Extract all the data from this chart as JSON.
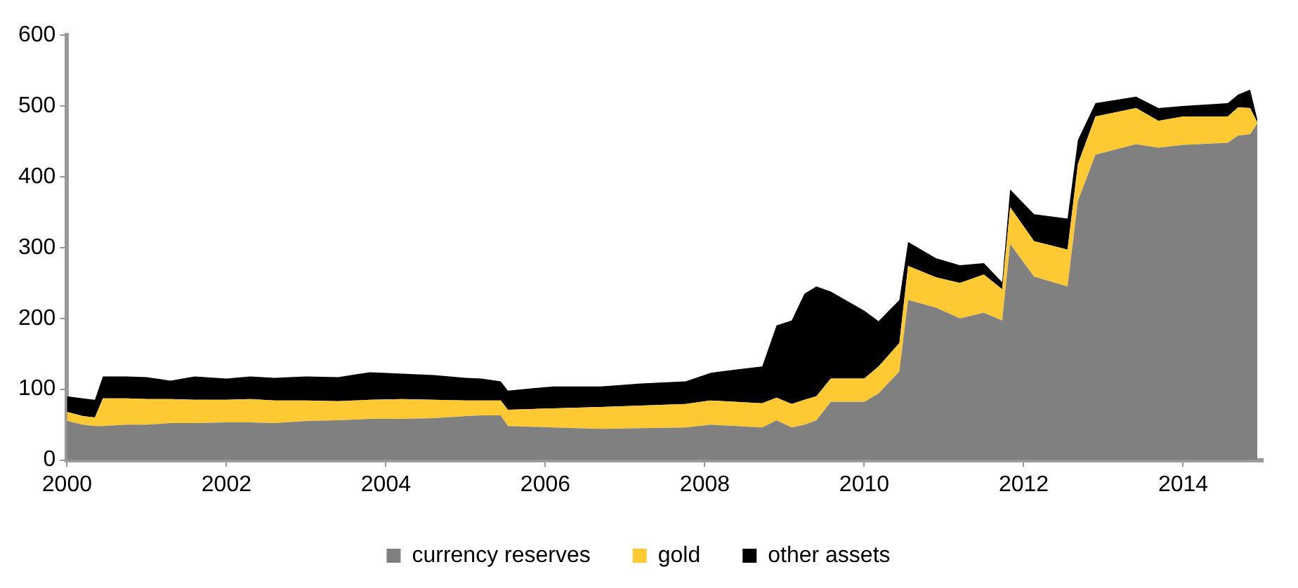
{
  "chart_data": {
    "type": "area",
    "stacked": true,
    "legend": "bottom",
    "grid": false,
    "marker": "none",
    "x": [
      2000.0,
      2000.2,
      2000.35,
      2000.45,
      2000.75,
      2001.0,
      2001.3,
      2001.6,
      2002.0,
      2002.3,
      2002.6,
      2003.0,
      2003.4,
      2003.8,
      2004.2,
      2004.6,
      2005.0,
      2005.2,
      2005.44,
      2005.53,
      2006.1,
      2006.7,
      2007.2,
      2007.76,
      2008.07,
      2008.4,
      2008.72,
      2008.9,
      2009.09,
      2009.25,
      2009.4,
      2009.58,
      2010.0,
      2010.18,
      2010.44,
      2010.55,
      2010.9,
      2011.2,
      2011.5,
      2011.73,
      2011.83,
      2012.13,
      2012.55,
      2012.68,
      2012.9,
      2013.41,
      2013.69,
      2014.0,
      2014.56,
      2014.69,
      2014.84,
      2014.93
    ],
    "series": [
      {
        "name": "currency reserves",
        "color": "#808080",
        "values": [
          55,
          50,
          48,
          48,
          50,
          50,
          52,
          52,
          53,
          53,
          52,
          55,
          56,
          58,
          58,
          59,
          62,
          63,
          63,
          48,
          46,
          44,
          45,
          46,
          50,
          48,
          46,
          56,
          46,
          50,
          56,
          82,
          82,
          94,
          125,
          226,
          215,
          200,
          208,
          197,
          305,
          259,
          245,
          366,
          431,
          446,
          441,
          445,
          448,
          458,
          460,
          475
        ]
      },
      {
        "name": "gold",
        "color": "#ffc933",
        "values": [
          13,
          12,
          12,
          39,
          37,
          36,
          34,
          33,
          32,
          33,
          32,
          29,
          27,
          27,
          28,
          26,
          22,
          21,
          21,
          23,
          27,
          31,
          32,
          33,
          34,
          34,
          34,
          32,
          33,
          35,
          34,
          33,
          33,
          38,
          40,
          48,
          43,
          50,
          54,
          44,
          52,
          50,
          52,
          52,
          54,
          51,
          38,
          40,
          37,
          40,
          37,
          2
        ]
      },
      {
        "name": "other assets",
        "color": "#000000",
        "values": [
          22,
          25,
          25,
          31,
          31,
          31,
          26,
          33,
          30,
          32,
          32,
          34,
          34,
          39,
          36,
          35,
          32,
          31,
          27,
          27,
          31,
          29,
          31,
          32,
          39,
          46,
          52,
          102,
          118,
          150,
          155,
          123,
          96,
          64,
          61,
          34,
          27,
          25,
          16,
          10,
          25,
          38,
          44,
          34,
          19,
          16,
          18,
          15,
          19,
          18,
          26,
          4
        ]
      }
    ],
    "xlim": [
      2000,
      2015
    ],
    "xticks": [
      2000,
      2002,
      2004,
      2006,
      2008,
      2010,
      2012,
      2014
    ],
    "ylim": [
      0,
      600
    ],
    "yticks": [
      0,
      100,
      200,
      300,
      400,
      500,
      600
    ]
  }
}
